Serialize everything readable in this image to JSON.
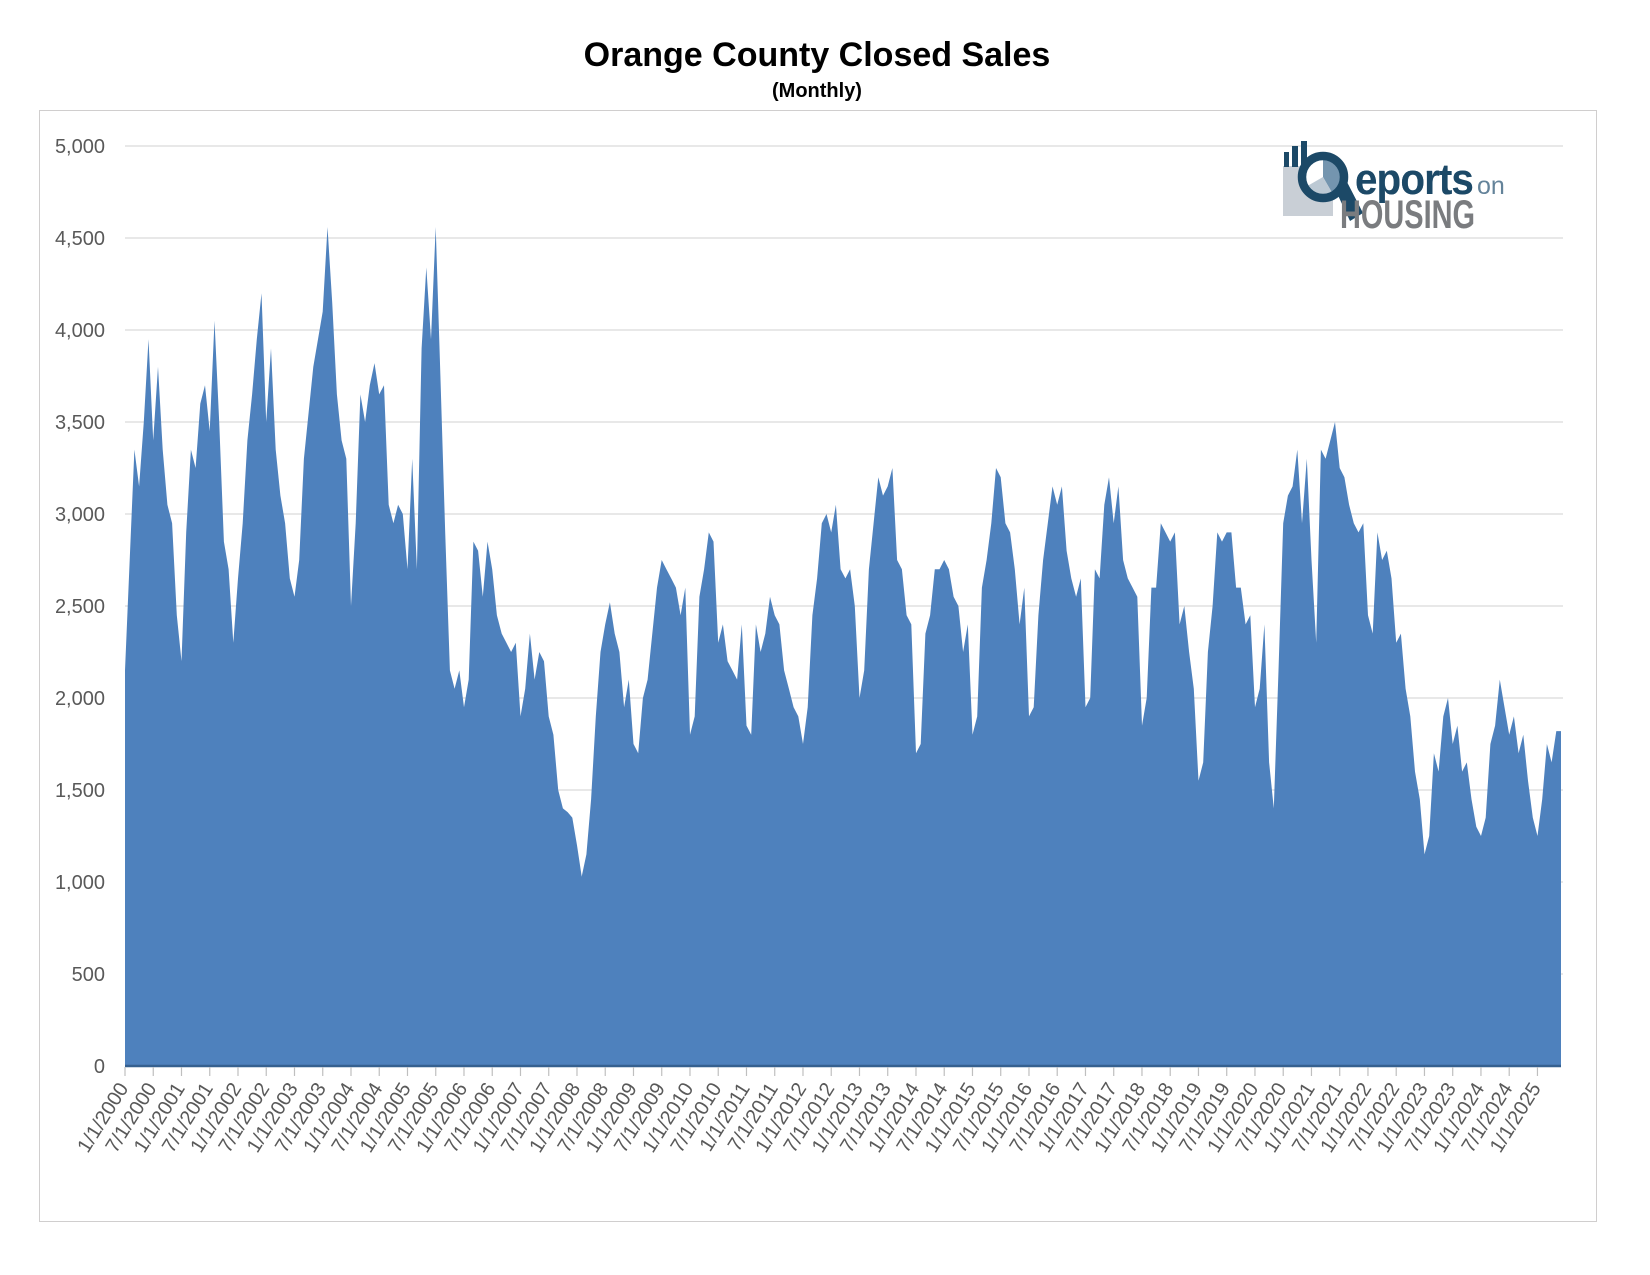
{
  "chart_data": {
    "type": "area",
    "title": "Orange County Closed Sales",
    "subtitle": "(Monthly)",
    "series_name": "Closed Sales",
    "frequency": "monthly",
    "start": "1/1/2000",
    "end": "6/1/2025",
    "ylim": [
      0,
      5000
    ],
    "grid": true,
    "legend": "none",
    "y_ticks": [
      0,
      500,
      1000,
      1500,
      2000,
      2500,
      3000,
      3500,
      4000,
      4500,
      5000
    ],
    "y_tick_labels": [
      "0",
      "500",
      "1,000",
      "1,500",
      "2,000",
      "2,500",
      "3,000",
      "3,500",
      "4,000",
      "4,500",
      "5,000"
    ],
    "x_tick_labels": [
      "1/1/2000",
      "7/1/2000",
      "1/1/2001",
      "7/1/2001",
      "1/1/2002",
      "7/1/2002",
      "1/1/2003",
      "7/1/2003",
      "1/1/2004",
      "7/1/2004",
      "1/1/2005",
      "7/1/2005",
      "1/1/2006",
      "7/1/2006",
      "1/1/2007",
      "7/1/2007",
      "1/1/2008",
      "7/1/2008",
      "1/1/2009",
      "7/1/2009",
      "1/1/2010",
      "7/1/2010",
      "1/1/2011",
      "7/1/2011",
      "1/1/2012",
      "7/1/2012",
      "1/1/2013",
      "7/1/2013",
      "1/1/2014",
      "7/1/2014",
      "1/1/2015",
      "7/1/2015",
      "1/1/2016",
      "7/1/2016",
      "1/1/2017",
      "7/1/2017",
      "1/1/2018",
      "7/1/2018",
      "1/1/2019",
      "7/1/2019",
      "1/1/2020",
      "7/1/2020",
      "1/1/2021",
      "7/1/2021",
      "1/1/2022",
      "7/1/2022",
      "1/1/2023",
      "7/1/2023",
      "1/1/2024",
      "7/1/2024",
      "1/1/2025"
    ],
    "x_ticks_every_n_months": 6,
    "values": [
      2150,
      2750,
      3350,
      3150,
      3500,
      3950,
      3400,
      3800,
      3350,
      3050,
      2950,
      2450,
      2200,
      2900,
      3350,
      3250,
      3600,
      3700,
      3450,
      4050,
      3500,
      2850,
      2700,
      2300,
      2650,
      2950,
      3400,
      3650,
      3950,
      4200,
      3500,
      3900,
      3350,
      3100,
      2950,
      2650,
      2550,
      2750,
      3300,
      3550,
      3800,
      3950,
      4100,
      4560,
      4150,
      3650,
      3400,
      3300,
      2500,
      2950,
      3650,
      3500,
      3700,
      3820,
      3650,
      3700,
      3050,
      2950,
      3050,
      3000,
      2700,
      3300,
      2700,
      3900,
      4340,
      3950,
      4560,
      3750,
      2900,
      2150,
      2050,
      2150,
      1950,
      2100,
      2850,
      2800,
      2550,
      2850,
      2700,
      2450,
      2350,
      2300,
      2250,
      2300,
      1900,
      2050,
      2350,
      2100,
      2250,
      2200,
      1900,
      1800,
      1500,
      1400,
      1380,
      1350,
      1200,
      1030,
      1150,
      1450,
      1900,
      2250,
      2400,
      2520,
      2350,
      2250,
      1950,
      2100,
      1750,
      1700,
      2000,
      2100,
      2350,
      2600,
      2750,
      2700,
      2650,
      2600,
      2450,
      2600,
      1800,
      1900,
      2550,
      2700,
      2900,
      2850,
      2300,
      2400,
      2200,
      2150,
      2100,
      2400,
      1850,
      1800,
      2400,
      2250,
      2350,
      2550,
      2450,
      2400,
      2150,
      2050,
      1950,
      1900,
      1750,
      1950,
      2450,
      2650,
      2950,
      3000,
      2900,
      3050,
      2700,
      2650,
      2700,
      2500,
      2000,
      2150,
      2700,
      2950,
      3200,
      3100,
      3150,
      3250,
      2750,
      2700,
      2450,
      2400,
      1700,
      1750,
      2350,
      2450,
      2700,
      2700,
      2750,
      2700,
      2550,
      2500,
      2250,
      2400,
      1800,
      1900,
      2600,
      2750,
      2950,
      3250,
      3200,
      2950,
      2900,
      2700,
      2400,
      2600,
      1900,
      1950,
      2450,
      2750,
      2950,
      3150,
      3050,
      3150,
      2800,
      2650,
      2550,
      2650,
      1950,
      2000,
      2700,
      2650,
      3050,
      3200,
      2950,
      3150,
      2750,
      2650,
      2600,
      2550,
      1850,
      2000,
      2600,
      2600,
      2950,
      2900,
      2850,
      2900,
      2400,
      2500,
      2250,
      2050,
      1550,
      1650,
      2250,
      2500,
      2900,
      2850,
      2900,
      2900,
      2600,
      2600,
      2400,
      2450,
      1950,
      2050,
      2400,
      1650,
      1400,
      2150,
      2950,
      3100,
      3150,
      3350,
      2950,
      3300,
      2750,
      2300,
      3350,
      3300,
      3400,
      3500,
      3250,
      3200,
      3050,
      2950,
      2900,
      2950,
      2450,
      2350,
      2900,
      2750,
      2800,
      2650,
      2300,
      2350,
      2050,
      1900,
      1600,
      1450,
      1150,
      1250,
      1700,
      1600,
      1900,
      2000,
      1750,
      1850,
      1600,
      1650,
      1450,
      1300,
      1250,
      1350,
      1750,
      1850,
      2100,
      1950,
      1800,
      1900,
      1700,
      1800,
      1550,
      1350,
      1250,
      1450,
      1750,
      1650,
      1820,
      1820
    ],
    "colors": {
      "area_fill": "#4E81BD",
      "area_edge": "#35608F",
      "gridline": "#D9D9D9",
      "tick": "#BFBFBF",
      "axis_label": "#595959",
      "chart_border": "#D0CECE",
      "title": "#000000"
    }
  },
  "logo": {
    "brand_reports_text": "eports",
    "brand_on_text": "on",
    "brand_housing_text": "HOUSING",
    "navy": "#1C4967",
    "on_color": "#64839A",
    "housing_gray": "#7A7C7F",
    "square_gray": "#C9CFD6",
    "pie_medium": "#7495AF",
    "pie_light": "#BCC9D4"
  }
}
